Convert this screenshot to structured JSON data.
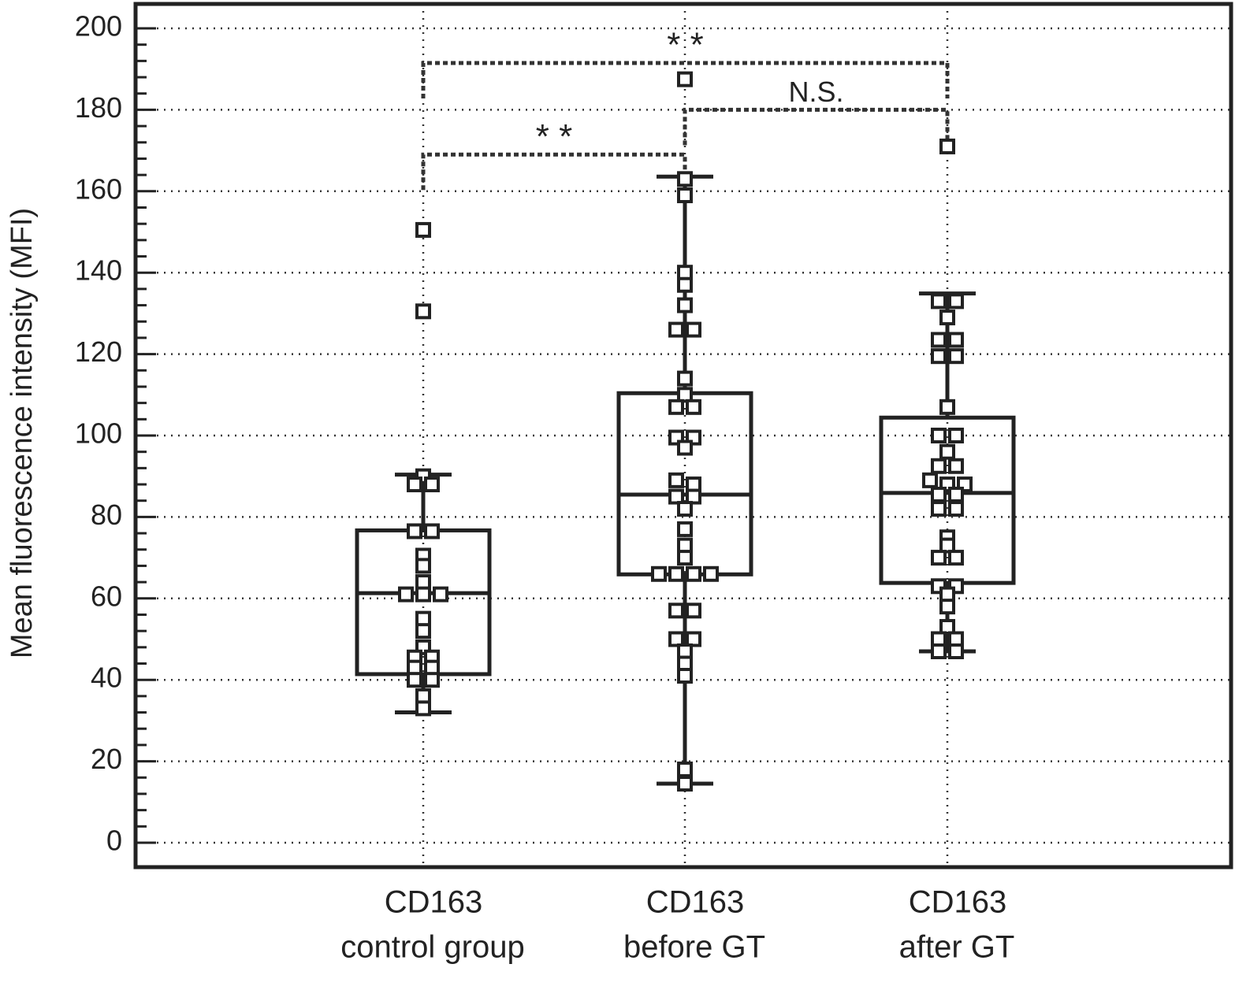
{
  "chart_data": {
    "type": "box",
    "ylabel": "Mean fluorescence intensity (MFI)",
    "ylim": [
      -6,
      206
    ],
    "yticks": [
      0,
      20,
      40,
      60,
      80,
      100,
      120,
      140,
      160,
      180,
      200
    ],
    "yminorticks": [
      4,
      8,
      12,
      16,
      24,
      28,
      32,
      36,
      44,
      48,
      52,
      56,
      64,
      68,
      72,
      76,
      84,
      88,
      92,
      96,
      104,
      108,
      112,
      116,
      124,
      128,
      132,
      136,
      144,
      148,
      152,
      156,
      164,
      168,
      172,
      176,
      184,
      188,
      192,
      196
    ],
    "grid": true,
    "color": "#222222",
    "categories": [
      [
        "CD163",
        "control group"
      ],
      [
        "CD163",
        "before GT"
      ],
      [
        "CD163",
        "after GT"
      ]
    ],
    "boxes": [
      {
        "whisker_low": 32,
        "q1": 41.4,
        "median": 61.3,
        "q3": 76.7,
        "whisker_high": 90.4,
        "points": [
          150.5,
          130.5,
          90,
          88,
          88,
          76.5,
          76.5,
          70.5,
          68,
          64,
          61,
          61,
          61,
          55,
          52,
          48,
          45.5,
          45.5,
          43,
          43,
          40,
          40,
          36,
          33
        ]
      },
      {
        "whisker_low": 14.5,
        "q1": 65.9,
        "median": 85.5,
        "q3": 110.4,
        "whisker_high": 163.6,
        "points": [
          187.5,
          163,
          159,
          140,
          137,
          132,
          126,
          126,
          114,
          110,
          107,
          107,
          99.5,
          99.5,
          97,
          89,
          88,
          85,
          85,
          82,
          77,
          73,
          70,
          66,
          66,
          66,
          66,
          57,
          57,
          50,
          50,
          47,
          44,
          41,
          18,
          14.5
        ]
      },
      {
        "whisker_low": 47,
        "q1": 63.8,
        "median": 85.9,
        "q3": 104.4,
        "whisker_high": 134.9,
        "points": [
          171,
          133,
          133,
          129,
          123.5,
          123.5,
          119.5,
          119.5,
          107,
          100,
          100,
          96,
          92.5,
          92.5,
          89,
          88,
          88,
          85.5,
          85.5,
          82,
          82,
          75,
          73,
          70,
          70,
          63,
          63,
          61,
          58,
          53,
          50,
          50,
          47,
          47
        ]
      }
    ],
    "comparisons": [
      {
        "from": 0,
        "to": 1,
        "label": "* *"
      },
      {
        "from": 1,
        "to": 2,
        "label": "N.S."
      },
      {
        "from": 0,
        "to": 2,
        "label": "* *"
      }
    ]
  }
}
